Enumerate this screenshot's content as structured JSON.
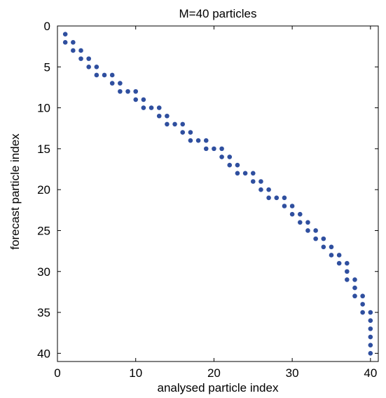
{
  "chart_data": {
    "type": "scatter",
    "title": "M=40 particles",
    "xlabel": "analysed particle index",
    "ylabel": "forecast particle index",
    "xlim": [
      0,
      41
    ],
    "ylim": [
      0,
      41
    ],
    "y_reversed": true,
    "xticks": [
      0,
      10,
      20,
      30,
      40
    ],
    "yticks": [
      0,
      5,
      10,
      15,
      20,
      25,
      30,
      35,
      40
    ],
    "grid": false,
    "legend": "none",
    "marker_color": "#2f4f9f",
    "points": [
      [
        1,
        1
      ],
      [
        1,
        2
      ],
      [
        2,
        2
      ],
      [
        2,
        3
      ],
      [
        3,
        3
      ],
      [
        3,
        4
      ],
      [
        4,
        4
      ],
      [
        4,
        5
      ],
      [
        5,
        5
      ],
      [
        5,
        6
      ],
      [
        6,
        6
      ],
      [
        7,
        6
      ],
      [
        7,
        7
      ],
      [
        8,
        7
      ],
      [
        8,
        8
      ],
      [
        9,
        8
      ],
      [
        10,
        8
      ],
      [
        10,
        9
      ],
      [
        11,
        9
      ],
      [
        11,
        10
      ],
      [
        12,
        10
      ],
      [
        13,
        10
      ],
      [
        13,
        11
      ],
      [
        14,
        11
      ],
      [
        14,
        12
      ],
      [
        15,
        12
      ],
      [
        16,
        12
      ],
      [
        16,
        13
      ],
      [
        17,
        13
      ],
      [
        17,
        14
      ],
      [
        18,
        14
      ],
      [
        19,
        14
      ],
      [
        19,
        15
      ],
      [
        20,
        15
      ],
      [
        21,
        15
      ],
      [
        21,
        16
      ],
      [
        22,
        16
      ],
      [
        22,
        17
      ],
      [
        23,
        17
      ],
      [
        23,
        18
      ],
      [
        24,
        18
      ],
      [
        25,
        18
      ],
      [
        25,
        19
      ],
      [
        26,
        19
      ],
      [
        26,
        20
      ],
      [
        27,
        20
      ],
      [
        27,
        21
      ],
      [
        28,
        21
      ],
      [
        29,
        21
      ],
      [
        29,
        22
      ],
      [
        30,
        22
      ],
      [
        30,
        23
      ],
      [
        31,
        23
      ],
      [
        31,
        24
      ],
      [
        32,
        24
      ],
      [
        32,
        25
      ],
      [
        33,
        25
      ],
      [
        33,
        26
      ],
      [
        34,
        26
      ],
      [
        34,
        27
      ],
      [
        35,
        27
      ],
      [
        35,
        28
      ],
      [
        36,
        28
      ],
      [
        36,
        29
      ],
      [
        37,
        29
      ],
      [
        37,
        30
      ],
      [
        37,
        31
      ],
      [
        38,
        31
      ],
      [
        38,
        32
      ],
      [
        38,
        33
      ],
      [
        39,
        33
      ],
      [
        39,
        34
      ],
      [
        39,
        35
      ],
      [
        40,
        35
      ],
      [
        40,
        36
      ],
      [
        40,
        37
      ],
      [
        40,
        38
      ],
      [
        40,
        39
      ],
      [
        40,
        40
      ]
    ]
  }
}
